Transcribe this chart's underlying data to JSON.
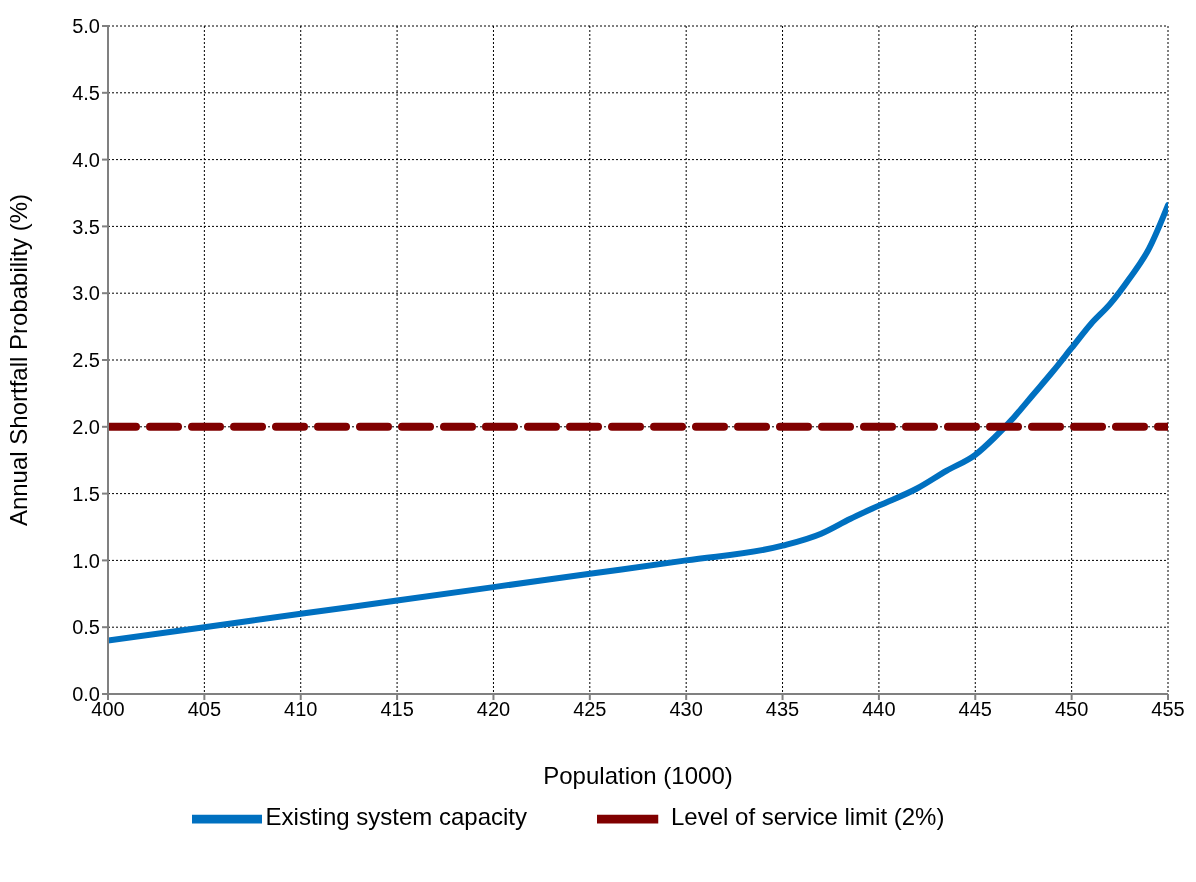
{
  "chart_data": {
    "type": "line",
    "xlabel": "Population (1000)",
    "ylabel": "Annual Shortfall Probability (%)",
    "series": [
      {
        "name": "Existing system capacity",
        "color": "#0070c0",
        "line_style": "solid",
        "x": [
          400,
          405,
          410,
          415,
          420,
          425,
          430,
          435,
          437,
          438.5,
          440,
          442,
          443.5,
          445,
          446,
          447,
          448,
          449,
          450,
          451,
          452,
          453,
          454,
          455
        ],
        "values": [
          0.4,
          0.5,
          0.6,
          0.7,
          0.8,
          0.9,
          1.0,
          1.11,
          1.2,
          1.31,
          1.41,
          1.54,
          1.67,
          1.79,
          1.92,
          2.07,
          2.24,
          2.41,
          2.59,
          2.77,
          2.92,
          3.11,
          3.33,
          3.66
        ]
      },
      {
        "name": "Level of service limit (2%)",
        "color": "#800000",
        "line_style": "dashed",
        "x": [
          400,
          455
        ],
        "values": [
          2.0,
          2.0
        ]
      }
    ],
    "xlim": [
      400,
      455
    ],
    "xticks": [
      400,
      405,
      410,
      415,
      420,
      425,
      430,
      435,
      440,
      445,
      450,
      455
    ],
    "ylim": [
      0,
      5
    ],
    "yticks": [
      {
        "value": 0,
        "label": "0.0"
      },
      {
        "value": 0.5,
        "label": "0.5"
      },
      {
        "value": 1,
        "label": "1.0"
      },
      {
        "value": 1.5,
        "label": "1.5"
      },
      {
        "value": 2,
        "label": "2.0"
      },
      {
        "value": 2.5,
        "label": "2.5"
      },
      {
        "value": 3,
        "label": "3.0"
      },
      {
        "value": 3.5,
        "label": "3.5"
      },
      {
        "value": 4,
        "label": "4.0"
      },
      {
        "value": 4.5,
        "label": "4.5"
      },
      {
        "value": 5,
        "label": "5.0"
      }
    ],
    "grid": true,
    "legend": "bottom",
    "marker": "none"
  }
}
